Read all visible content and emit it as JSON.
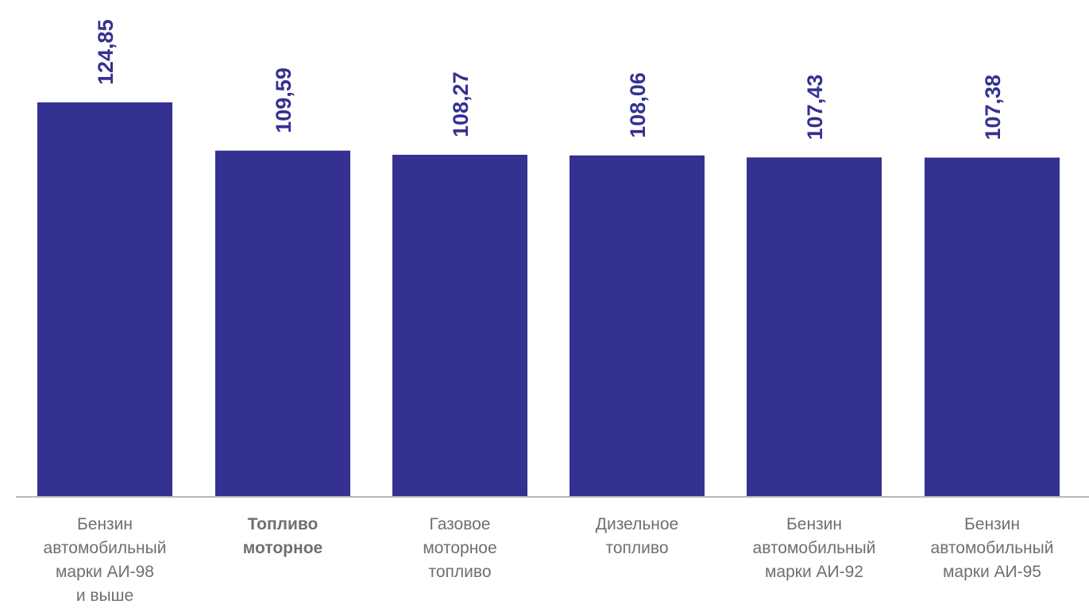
{
  "chart_data": {
    "type": "bar",
    "values": [
      124.85,
      109.59,
      108.27,
      108.06,
      107.43,
      107.38
    ],
    "value_labels": [
      "124,85",
      "109,59",
      "108,27",
      "108,06",
      "107,43",
      "107,38"
    ],
    "categories": [
      [
        "Бензин",
        "автомобильный",
        "марки АИ-98",
        "и выше"
      ],
      [
        "Топливо",
        "моторное"
      ],
      [
        "Газовое",
        "моторное",
        "топливо"
      ],
      [
        "Дизельное",
        "топливо"
      ],
      [
        "Бензин",
        "автомобильный",
        "марки АИ-92"
      ],
      [
        "Бензин",
        "автомобильный",
        "марки АИ-95"
      ]
    ],
    "highlighted_category": 1,
    "bar_color": "#343191",
    "label_color": "#343191",
    "category_color": "#6f6f6f",
    "grid": false
  }
}
